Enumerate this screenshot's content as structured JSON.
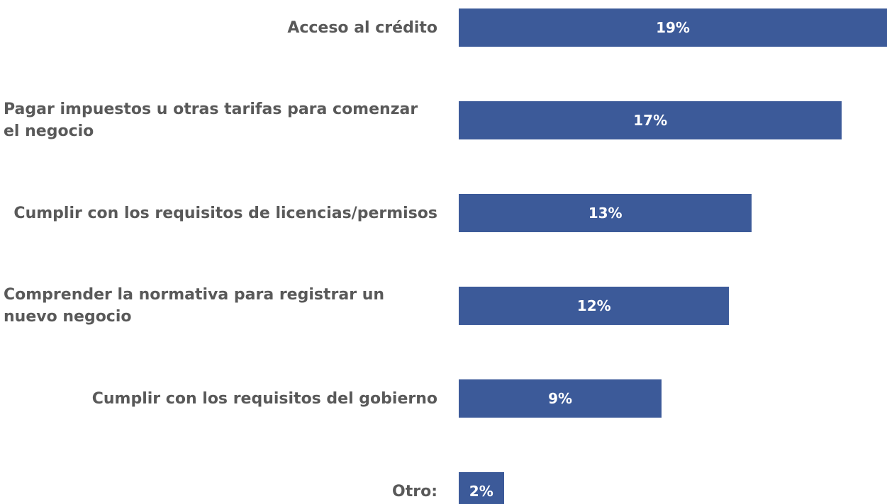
{
  "chart_data": {
    "type": "bar",
    "orientation": "horizontal",
    "categories": [
      "Acceso al crédito",
      "Pagar impuestos u otras tarifas para comenzar el negocio",
      "Cumplir con los requisitos de licencias/permisos",
      "Comprender la normativa para registrar un nuevo negocio",
      "Cumplir con los requisitos del gobierno",
      "Otro:"
    ],
    "values": [
      19,
      17,
      13,
      12,
      9,
      2
    ],
    "value_labels": [
      "19%",
      "17%",
      "13%",
      "12%",
      "9%",
      "2%"
    ],
    "color": "#3c5a99"
  }
}
